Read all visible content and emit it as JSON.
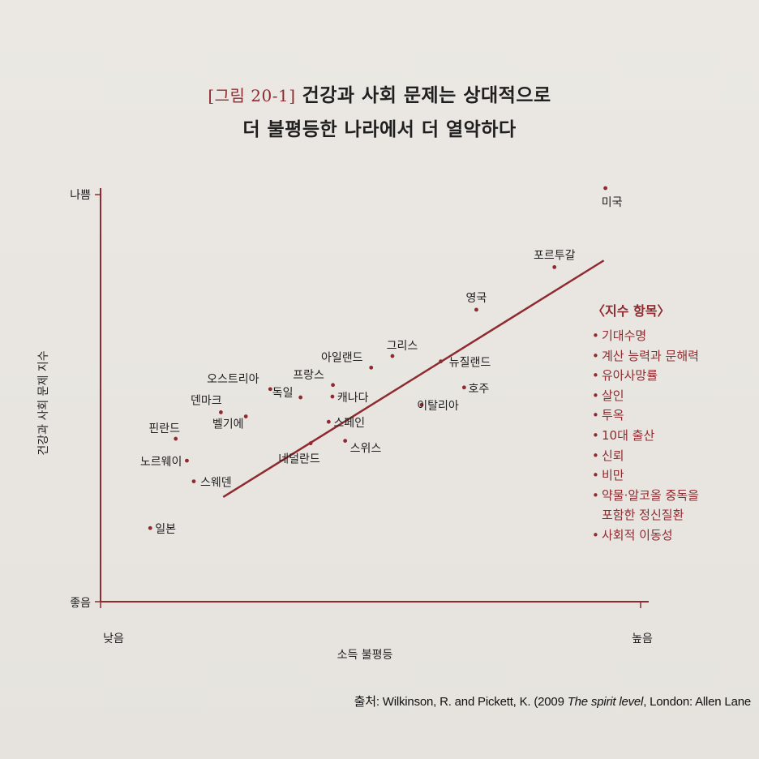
{
  "title": {
    "figure_label": "[그림 20-1]",
    "line1": "건강과 사회 문제는 상대적으로",
    "line2": "더 불평등한 나라에서 더 열악하다"
  },
  "source": {
    "prefix": "출처: Wilkinson, R. and Pickett, K. (2009 ",
    "book": "The spirit level",
    "suffix": ", London: Allen Lane"
  },
  "legend": {
    "title": "〈지수 항목〉",
    "items": [
      "기대수명",
      "계산 능력과 문해력",
      "유아사망률",
      "살인",
      "투옥",
      "10대 출산",
      "신뢰",
      "비만",
      "약물·알코올 중독을",
      "포함한 정신질환",
      "사회적 이동성"
    ],
    "bulleted": [
      true,
      true,
      true,
      true,
      true,
      true,
      true,
      true,
      true,
      false,
      true
    ]
  },
  "colors": {
    "accent": "#8f2a30",
    "text": "#1f1f1f",
    "background": "#e8e5e0"
  },
  "chart_data": {
    "type": "scatter",
    "xlabel": "소득 불평등",
    "ylabel": "건강과 사회 문제 지수",
    "x_tick_labels": [
      "낮음",
      "높음"
    ],
    "y_tick_labels": [
      "좋음",
      "나쁨"
    ],
    "xlim": [
      0,
      1
    ],
    "ylim": [
      0,
      1
    ],
    "trend_line": {
      "x": [
        0.092,
        0.949
      ],
      "y": [
        0.253,
        0.825
      ]
    },
    "points": [
      {
        "label": "미국",
        "x": 0.949,
        "y": 1.0
      },
      {
        "label": "포르투갈",
        "x": 0.853,
        "y": 0.809
      },
      {
        "label": "영국",
        "x": 0.706,
        "y": 0.706
      },
      {
        "label": "그리스",
        "x": 0.548,
        "y": 0.594
      },
      {
        "label": "아일랜드",
        "x": 0.508,
        "y": 0.566
      },
      {
        "label": "뉴질랜드",
        "x": 0.639,
        "y": 0.581
      },
      {
        "label": "호주",
        "x": 0.683,
        "y": 0.518
      },
      {
        "label": "오스트리아",
        "x": 0.318,
        "y": 0.514
      },
      {
        "label": "프랑스",
        "x": 0.436,
        "y": 0.524
      },
      {
        "label": "독일",
        "x": 0.375,
        "y": 0.494
      },
      {
        "label": "캐나다",
        "x": 0.435,
        "y": 0.496
      },
      {
        "label": "덴마크",
        "x": 0.225,
        "y": 0.458
      },
      {
        "label": "벨기에",
        "x": 0.272,
        "y": 0.448
      },
      {
        "label": "이탈리아",
        "x": 0.603,
        "y": 0.476
      },
      {
        "label": "스페인",
        "x": 0.428,
        "y": 0.435
      },
      {
        "label": "스위스",
        "x": 0.459,
        "y": 0.389
      },
      {
        "label": "네덜란드",
        "x": 0.394,
        "y": 0.383
      },
      {
        "label": "핀란드",
        "x": 0.14,
        "y": 0.394
      },
      {
        "label": "노르웨이",
        "x": 0.161,
        "y": 0.341
      },
      {
        "label": "스웨덴",
        "x": 0.174,
        "y": 0.291
      },
      {
        "label": "일본",
        "x": 0.092,
        "y": 0.178
      }
    ]
  }
}
